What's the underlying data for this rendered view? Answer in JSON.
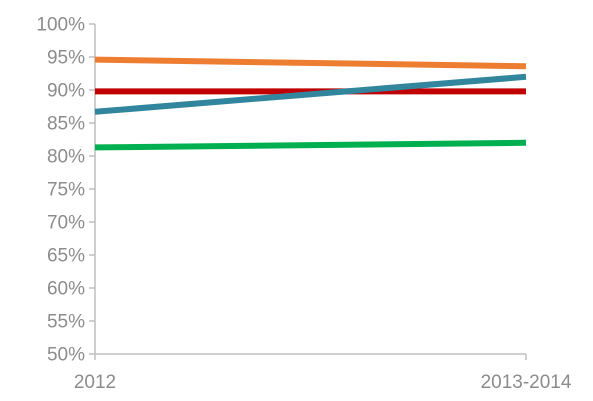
{
  "chart_data": {
    "type": "line",
    "categories": [
      "2012",
      "2013-2014"
    ],
    "series": [
      {
        "color": "#ed7d31",
        "values": [
          94.6,
          93.6
        ]
      },
      {
        "color": "#c00000",
        "values": [
          89.8,
          89.8
        ]
      },
      {
        "color": "#31859c",
        "values": [
          86.7,
          92.0
        ]
      },
      {
        "color": "#00b050",
        "values": [
          81.3,
          82.0
        ]
      }
    ],
    "ylim": [
      50,
      100
    ],
    "yticks": [
      50,
      55,
      60,
      65,
      70,
      75,
      80,
      85,
      90,
      95,
      100
    ],
    "ytick_labels": [
      "50%",
      "55%",
      "60%",
      "65%",
      "70%",
      "75%",
      "80%",
      "85%",
      "90%",
      "95%",
      "100%"
    ],
    "grid": false,
    "legend": "none"
  }
}
